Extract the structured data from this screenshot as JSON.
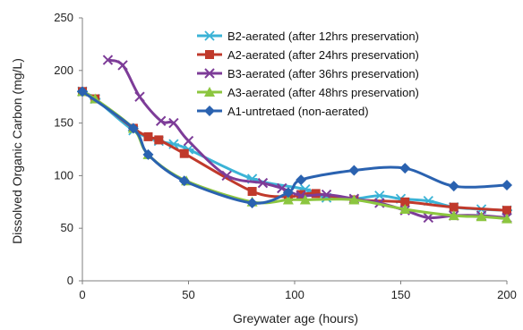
{
  "chart_data": {
    "type": "line",
    "title": "",
    "xlabel": "Greywater age (hours)",
    "ylabel": "Dissolved Organic Carbon (mg/L)",
    "xlim": [
      0,
      200
    ],
    "ylim": [
      0,
      250
    ],
    "xticks": [
      "0",
      "50",
      "100",
      "150",
      "200"
    ],
    "yticks": [
      "0",
      "50",
      "100",
      "150",
      "200",
      "250"
    ],
    "grid": false,
    "legend_position": "top-right",
    "series": [
      {
        "name": "B2-aerated (after 12hrs preservation)",
        "color": "#3bb3d6",
        "marker": "asterisk",
        "x": [
          0,
          6,
          24,
          36,
          43,
          50,
          80,
          105,
          115,
          128,
          140,
          150,
          163,
          175,
          188,
          200
        ],
        "y": [
          180,
          173,
          143,
          133,
          130,
          125,
          97,
          87,
          79,
          78,
          81,
          78,
          76,
          70,
          68,
          67
        ]
      },
      {
        "name": "A2-aerated (after 24hrs preservation)",
        "color": "#c0392b",
        "marker": "square",
        "x": [
          0,
          6,
          24,
          31,
          36,
          48,
          80,
          97,
          103,
          110,
          128,
          152,
          175,
          200
        ],
        "y": [
          180,
          173,
          145,
          137,
          134,
          121,
          85,
          80,
          82,
          83,
          77,
          75,
          70,
          67
        ]
      },
      {
        "name": "B3-aerated (after 36hrs preservation)",
        "color": "#7d3c98",
        "marker": "x",
        "x": [
          12,
          19,
          27,
          37,
          43,
          50,
          68,
          85,
          94,
          103,
          115,
          128,
          140,
          152,
          163,
          175,
          188,
          200
        ],
        "y": [
          210,
          205,
          175,
          152,
          150,
          133,
          100,
          93,
          88,
          81,
          82,
          78,
          74,
          67,
          60,
          62,
          62,
          60
        ]
      },
      {
        "name": "A3-aerated (after 48hrs preservation)",
        "color": "#8cc63f",
        "marker": "triangle",
        "x": [
          0,
          6,
          24,
          31,
          49,
          80,
          97,
          105,
          128,
          152,
          175,
          188,
          200
        ],
        "y": [
          180,
          173,
          145,
          120,
          95,
          75,
          77,
          77,
          77,
          68,
          62,
          61,
          59
        ]
      },
      {
        "name": "A1-untretaed (non-aerated)",
        "color": "#2a62b0",
        "marker": "diamond",
        "x": [
          0,
          24,
          31,
          48,
          80,
          97,
          103,
          128,
          152,
          175,
          200
        ],
        "y": [
          180,
          145,
          120,
          95,
          74,
          84,
          96,
          105,
          107,
          90,
          91
        ]
      }
    ]
  }
}
